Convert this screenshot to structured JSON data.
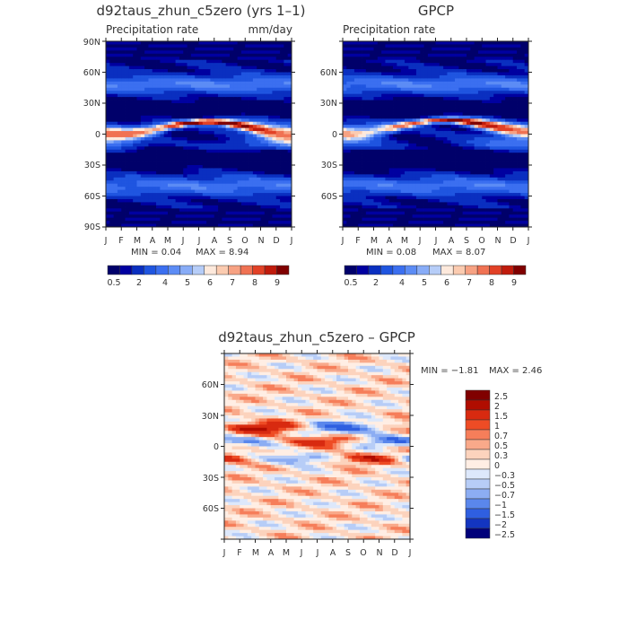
{
  "chart_data": [
    {
      "type": "heatmap",
      "title": "d92taus_zhun_c5zero (yrs 1–1)",
      "subtitle_left": "Precipitation rate",
      "units": "mm/day",
      "x_ticks": [
        "J",
        "F",
        "M",
        "A",
        "M",
        "J",
        "J",
        "A",
        "S",
        "O",
        "N",
        "D",
        "J"
      ],
      "y_ticks": [
        "90N",
        "60N",
        "30N",
        "0",
        "30S",
        "60S",
        "90S"
      ],
      "min_text": "MIN =   0.04",
      "max_text": "MAX =   8.94",
      "min": 0.04,
      "max": 8.94,
      "colorbar_levels": [
        0.5,
        1,
        2,
        3,
        4,
        4.5,
        5,
        5.5,
        6,
        6.5,
        7,
        7.5,
        8,
        8.5,
        9
      ],
      "colorbar_labels": [
        "0.5",
        "2",
        "4",
        "5",
        "6",
        "7",
        "8",
        "9"
      ]
    },
    {
      "type": "heatmap",
      "title": "GPCP",
      "subtitle_left": "Precipitation rate",
      "x_ticks": [
        "J",
        "F",
        "M",
        "A",
        "M",
        "J",
        "J",
        "A",
        "S",
        "O",
        "N",
        "D",
        "J"
      ],
      "y_ticks": [
        "60N",
        "30N",
        "0",
        "30S",
        "60S"
      ],
      "min_text": "MIN =   0.08",
      "max_text": "MAX =   8.07",
      "min": 0.08,
      "max": 8.07,
      "colorbar_levels": [
        0.5,
        1,
        2,
        3,
        4,
        4.5,
        5,
        5.5,
        6,
        6.5,
        7,
        7.5,
        8,
        8.5,
        9
      ],
      "colorbar_labels": [
        "0.5",
        "2",
        "4",
        "5",
        "6",
        "7",
        "8",
        "9"
      ]
    },
    {
      "type": "heatmap",
      "title": "d92taus_zhun_c5zero – GPCP",
      "x_ticks": [
        "J",
        "F",
        "M",
        "A",
        "M",
        "J",
        "J",
        "A",
        "S",
        "O",
        "N",
        "D",
        "J"
      ],
      "y_ticks": [
        "60N",
        "30N",
        "0",
        "30S",
        "60S"
      ],
      "min_text": "MIN =  −1.81",
      "max_text": "MAX =   2.46",
      "min": -1.81,
      "max": 2.46,
      "colorbar_levels": [
        2.5,
        2,
        1.5,
        1,
        0.7,
        0.5,
        0.3,
        0,
        -0.3,
        -0.5,
        -0.7,
        -1,
        -1.5,
        -2,
        -2.5
      ],
      "colorbar_labels": [
        "2.5",
        "2",
        "1.5",
        "1",
        "0.7",
        "0.5",
        "0.3",
        "0",
        "−0.3",
        "−0.5",
        "−0.7",
        "−1",
        "−1.5",
        "−2",
        "−2.5"
      ]
    }
  ],
  "colors": {
    "precip_scale": [
      "#00006a",
      "#0000a0",
      "#0a2fc0",
      "#1f55e0",
      "#3b6ff0",
      "#5c8cf5",
      "#88acf7",
      "#b6cdf8",
      "#fde9dc",
      "#fbcbb0",
      "#f7a283",
      "#f07253",
      "#e24126",
      "#c01b0c",
      "#800000"
    ],
    "diff_scale": [
      "#800000",
      "#b00d00",
      "#d82a10",
      "#ee4c25",
      "#f67e5a",
      "#f9a98a",
      "#fcd3bd",
      "#ffeee4",
      "#dde8fb",
      "#b7cdf7",
      "#8cadf3",
      "#5a87ec",
      "#2f5fe0",
      "#1335c0",
      "#00007a"
    ]
  }
}
